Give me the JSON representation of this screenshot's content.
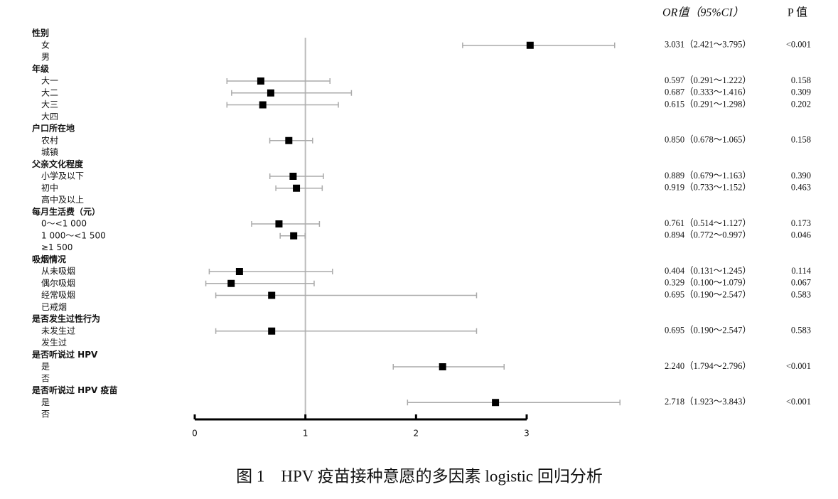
{
  "chart_data": {
    "type": "forest",
    "column_headers": [
      "OR值（95%CI）",
      "P 值"
    ],
    "caption": "图 1　HPV 疫苗接种意愿的多因素 logistic 回归分析",
    "xlim": [
      0,
      3
    ],
    "xticks": [
      0,
      1,
      2,
      3
    ],
    "reference": 1,
    "marker_color": "#000000",
    "ci_color": "#aaaaaa",
    "reference_color": "#bbbbbb",
    "groups": [
      {
        "label": "性别",
        "rows": [
          {
            "label": "女",
            "value": 3.031,
            "ci": [
              2.421,
              3.795
            ],
            "value_label": "3.031（2.421～3.795）",
            "p_label": "<0.001"
          },
          {
            "label": "男"
          }
        ]
      },
      {
        "label": "年级",
        "rows": [
          {
            "label": "大一",
            "value": 0.597,
            "ci": [
              0.291,
              1.222
            ],
            "value_label": "0.597（0.291～1.222）",
            "p_label": "0.158"
          },
          {
            "label": "大二",
            "value": 0.687,
            "ci": [
              0.333,
              1.416
            ],
            "value_label": "0.687（0.333～1.416）",
            "p_label": "0.309"
          },
          {
            "label": "大三",
            "value": 0.615,
            "ci": [
              0.291,
              1.298
            ],
            "value_label": "0.615（0.291～1.298）",
            "p_label": "0.202"
          },
          {
            "label": "大四"
          }
        ]
      },
      {
        "label": "户口所在地",
        "rows": [
          {
            "label": "农村",
            "value": 0.85,
            "ci": [
              0.678,
              1.065
            ],
            "value_label": "0.850（0.678～1.065）",
            "p_label": "0.158"
          },
          {
            "label": "城镇"
          }
        ]
      },
      {
        "label": "父亲文化程度",
        "rows": [
          {
            "label": "小学及以下",
            "value": 0.889,
            "ci": [
              0.679,
              1.163
            ],
            "value_label": "0.889（0.679～1.163）",
            "p_label": "0.390"
          },
          {
            "label": "初中",
            "value": 0.919,
            "ci": [
              0.733,
              1.152
            ],
            "value_label": "0.919（0.733～1.152）",
            "p_label": "0.463"
          },
          {
            "label": "高中及以上"
          }
        ]
      },
      {
        "label": "每月生活费（元）",
        "rows": [
          {
            "label": "0～<1 000",
            "value": 0.761,
            "ci": [
              0.514,
              1.127
            ],
            "value_label": "0.761（0.514～1.127）",
            "p_label": "0.173"
          },
          {
            "label": "1 000～<1 500",
            "value": 0.894,
            "ci": [
              0.772,
              0.997
            ],
            "value_label": "0.894（0.772～0.997）",
            "p_label": "0.046"
          },
          {
            "label": "≥1 500"
          }
        ]
      },
      {
        "label": "吸烟情况",
        "rows": [
          {
            "label": "从未吸烟",
            "value": 0.404,
            "ci": [
              0.131,
              1.245
            ],
            "value_label": "0.404（0.131～1.245）",
            "p_label": "0.114"
          },
          {
            "label": "偶尔吸烟",
            "value": 0.329,
            "ci": [
              0.1,
              1.079
            ],
            "value_label": "0.329（0.100～1.079）",
            "p_label": "0.067"
          },
          {
            "label": "经常吸烟",
            "value": 0.695,
            "ci": [
              0.19,
              2.547
            ],
            "value_label": "0.695（0.190～2.547）",
            "p_label": "0.583"
          },
          {
            "label": "已戒烟"
          }
        ]
      },
      {
        "label": "是否发生过性行为",
        "rows": [
          {
            "label": "未发生过",
            "value": 0.695,
            "ci": [
              0.19,
              2.547
            ],
            "value_label": "0.695（0.190～2.547）",
            "p_label": "0.583"
          },
          {
            "label": "发生过"
          }
        ]
      },
      {
        "label": "是否听说过 HPV",
        "rows": [
          {
            "label": "是",
            "value": 2.24,
            "ci": [
              1.794,
              2.796
            ],
            "value_label": "2.240（1.794～2.796）",
            "p_label": "<0.001"
          },
          {
            "label": "否"
          }
        ]
      },
      {
        "label": "是否听说过 HPV 疫苗",
        "rows": [
          {
            "label": "是",
            "value": 2.718,
            "ci": [
              1.923,
              3.843
            ],
            "value_label": "2.718（1.923～3.843）",
            "p_label": "<0.001"
          },
          {
            "label": "否"
          }
        ]
      }
    ]
  }
}
